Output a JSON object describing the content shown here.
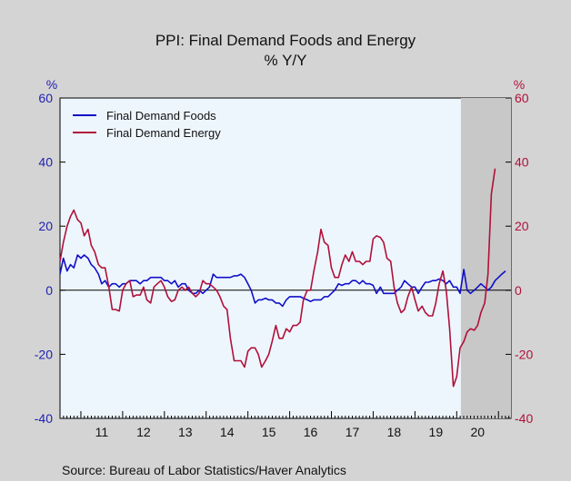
{
  "chart_data": {
    "type": "line",
    "title": "PPI: Final Demand Foods and Energy",
    "subtitle": "% Y/Y",
    "ylabel_left": "%",
    "ylabel_right": "%",
    "ylim": [
      -40,
      60
    ],
    "yticks": [
      -40,
      -20,
      0,
      20,
      40,
      60
    ],
    "x_range": [
      2010.5,
      2021.3
    ],
    "x_tick_labels": [
      {
        "label": "11",
        "year": 2011
      },
      {
        "label": "12",
        "year": 2012
      },
      {
        "label": "13",
        "year": 2013
      },
      {
        "label": "14",
        "year": 2014
      },
      {
        "label": "15",
        "year": 2015
      },
      {
        "label": "16",
        "year": 2016
      },
      {
        "label": "17",
        "year": 2017
      },
      {
        "label": "18",
        "year": 2018
      },
      {
        "label": "19",
        "year": 2019
      },
      {
        "label": "20",
        "year": 2020
      }
    ],
    "grid": false,
    "legend_position": "top-left",
    "recession_shading": {
      "start": 2020.1,
      "end": 2021.3
    },
    "colors": {
      "foods": "#1010c8",
      "energy": "#b0103a",
      "plot_bg": "#eef6fd",
      "shade": "#c8c8c8",
      "zero_line": "#000000"
    },
    "series": [
      {
        "name": "Final Demand Foods",
        "color": "#1010c8",
        "points": [
          [
            2010.5,
            5
          ],
          [
            2010.58,
            10
          ],
          [
            2010.67,
            6
          ],
          [
            2010.75,
            8
          ],
          [
            2010.83,
            7
          ],
          [
            2010.92,
            11
          ],
          [
            2011.0,
            10
          ],
          [
            2011.08,
            11
          ],
          [
            2011.17,
            10
          ],
          [
            2011.25,
            8
          ],
          [
            2011.33,
            7
          ],
          [
            2011.42,
            5
          ],
          [
            2011.5,
            2
          ],
          [
            2011.58,
            3
          ],
          [
            2011.67,
            1
          ],
          [
            2011.75,
            2
          ],
          [
            2011.83,
            2
          ],
          [
            2011.92,
            1
          ],
          [
            2012.0,
            2
          ],
          [
            2012.08,
            2
          ],
          [
            2012.17,
            3
          ],
          [
            2012.25,
            3
          ],
          [
            2012.33,
            3
          ],
          [
            2012.42,
            2
          ],
          [
            2012.5,
            3
          ],
          [
            2012.58,
            3
          ],
          [
            2012.67,
            4
          ],
          [
            2012.75,
            4
          ],
          [
            2012.83,
            4
          ],
          [
            2012.92,
            4
          ],
          [
            2013.0,
            3
          ],
          [
            2013.08,
            3
          ],
          [
            2013.17,
            2
          ],
          [
            2013.25,
            3
          ],
          [
            2013.33,
            1
          ],
          [
            2013.42,
            2
          ],
          [
            2013.5,
            2
          ],
          [
            2013.58,
            0
          ],
          [
            2013.67,
            -1
          ],
          [
            2013.75,
            -1
          ],
          [
            2013.83,
            0
          ],
          [
            2013.92,
            -1
          ],
          [
            2014.0,
            0
          ],
          [
            2014.08,
            1
          ],
          [
            2014.17,
            5
          ],
          [
            2014.25,
            4
          ],
          [
            2014.33,
            4
          ],
          [
            2014.42,
            4
          ],
          [
            2014.5,
            4
          ],
          [
            2014.58,
            4
          ],
          [
            2014.67,
            4.5
          ],
          [
            2014.75,
            4.5
          ],
          [
            2014.83,
            5
          ],
          [
            2014.92,
            4
          ],
          [
            2015.0,
            2
          ],
          [
            2015.08,
            0
          ],
          [
            2015.17,
            -4
          ],
          [
            2015.25,
            -3
          ],
          [
            2015.33,
            -3
          ],
          [
            2015.42,
            -2.5
          ],
          [
            2015.5,
            -3
          ],
          [
            2015.58,
            -3
          ],
          [
            2015.67,
            -4
          ],
          [
            2015.75,
            -4
          ],
          [
            2015.83,
            -5
          ],
          [
            2015.92,
            -3
          ],
          [
            2016.0,
            -2
          ],
          [
            2016.08,
            -2
          ],
          [
            2016.17,
            -2
          ],
          [
            2016.25,
            -2
          ],
          [
            2016.33,
            -2.5
          ],
          [
            2016.42,
            -3
          ],
          [
            2016.5,
            -3.5
          ],
          [
            2016.58,
            -3
          ],
          [
            2016.67,
            -3
          ],
          [
            2016.75,
            -3
          ],
          [
            2016.83,
            -2
          ],
          [
            2016.92,
            -2
          ],
          [
            2017.0,
            -1
          ],
          [
            2017.08,
            0
          ],
          [
            2017.17,
            2
          ],
          [
            2017.25,
            1.5
          ],
          [
            2017.33,
            2
          ],
          [
            2017.42,
            2
          ],
          [
            2017.5,
            3
          ],
          [
            2017.58,
            3
          ],
          [
            2017.67,
            2
          ],
          [
            2017.75,
            3
          ],
          [
            2017.83,
            2
          ],
          [
            2017.92,
            2
          ],
          [
            2018.0,
            1.5
          ],
          [
            2018.08,
            -1
          ],
          [
            2018.17,
            1
          ],
          [
            2018.25,
            -1
          ],
          [
            2018.33,
            -1
          ],
          [
            2018.42,
            -1
          ],
          [
            2018.5,
            -1
          ],
          [
            2018.58,
            0
          ],
          [
            2018.67,
            1
          ],
          [
            2018.75,
            3
          ],
          [
            2018.83,
            2
          ],
          [
            2018.92,
            1
          ],
          [
            2019.0,
            1
          ],
          [
            2019.08,
            -1
          ],
          [
            2019.17,
            1
          ],
          [
            2019.25,
            2.5
          ],
          [
            2019.33,
            2.5
          ],
          [
            2019.42,
            3
          ],
          [
            2019.5,
            3
          ],
          [
            2019.58,
            3.5
          ],
          [
            2019.67,
            3
          ],
          [
            2019.75,
            2
          ],
          [
            2019.83,
            3
          ],
          [
            2019.92,
            1
          ],
          [
            2020.0,
            1
          ],
          [
            2020.08,
            -1
          ],
          [
            2020.17,
            6.5
          ],
          [
            2020.25,
            0
          ],
          [
            2020.33,
            -1
          ],
          [
            2020.42,
            0
          ],
          [
            2020.5,
            1
          ],
          [
            2020.58,
            2
          ],
          [
            2020.67,
            1
          ],
          [
            2020.75,
            0
          ],
          [
            2020.83,
            1
          ],
          [
            2020.92,
            3
          ],
          [
            2021.0,
            4
          ],
          [
            2021.08,
            5
          ],
          [
            2021.17,
            6
          ]
        ]
      },
      {
        "name": "Final Demand Energy",
        "color": "#b0103a",
        "points": [
          [
            2010.5,
            9
          ],
          [
            2010.58,
            15
          ],
          [
            2010.67,
            20
          ],
          [
            2010.75,
            23
          ],
          [
            2010.83,
            25
          ],
          [
            2010.92,
            22
          ],
          [
            2011.0,
            21
          ],
          [
            2011.08,
            17
          ],
          [
            2011.17,
            19
          ],
          [
            2011.25,
            14
          ],
          [
            2011.33,
            12
          ],
          [
            2011.42,
            8
          ],
          [
            2011.5,
            7
          ],
          [
            2011.58,
            7
          ],
          [
            2011.67,
            1
          ],
          [
            2011.75,
            -6
          ],
          [
            2011.83,
            -6
          ],
          [
            2011.92,
            -6.5
          ],
          [
            2012.0,
            0
          ],
          [
            2012.08,
            2
          ],
          [
            2012.17,
            3
          ],
          [
            2012.25,
            -2
          ],
          [
            2012.33,
            -1.5
          ],
          [
            2012.42,
            -1.5
          ],
          [
            2012.5,
            1
          ],
          [
            2012.58,
            -3
          ],
          [
            2012.67,
            -4
          ],
          [
            2012.75,
            1
          ],
          [
            2012.83,
            2
          ],
          [
            2012.92,
            3
          ],
          [
            2013.0,
            1
          ],
          [
            2013.08,
            -2
          ],
          [
            2013.17,
            -3.5
          ],
          [
            2013.25,
            -3
          ],
          [
            2013.33,
            0
          ],
          [
            2013.42,
            1
          ],
          [
            2013.5,
            0
          ],
          [
            2013.58,
            1
          ],
          [
            2013.67,
            -1
          ],
          [
            2013.75,
            -2
          ],
          [
            2013.83,
            -1
          ],
          [
            2013.92,
            3
          ],
          [
            2014.0,
            2
          ],
          [
            2014.08,
            2
          ],
          [
            2014.17,
            1
          ],
          [
            2014.25,
            0
          ],
          [
            2014.33,
            -2
          ],
          [
            2014.42,
            -5
          ],
          [
            2014.5,
            -6
          ],
          [
            2014.58,
            -15
          ],
          [
            2014.67,
            -22
          ],
          [
            2014.75,
            -22
          ],
          [
            2014.83,
            -22
          ],
          [
            2014.92,
            -24
          ],
          [
            2015.0,
            -19
          ],
          [
            2015.08,
            -18
          ],
          [
            2015.17,
            -18
          ],
          [
            2015.25,
            -20
          ],
          [
            2015.33,
            -24
          ],
          [
            2015.42,
            -22
          ],
          [
            2015.5,
            -20
          ],
          [
            2015.58,
            -16
          ],
          [
            2015.67,
            -11
          ],
          [
            2015.75,
            -15
          ],
          [
            2015.83,
            -15
          ],
          [
            2015.92,
            -12
          ],
          [
            2016.0,
            -13
          ],
          [
            2016.08,
            -11
          ],
          [
            2016.17,
            -11
          ],
          [
            2016.25,
            -10
          ],
          [
            2016.33,
            -3
          ],
          [
            2016.42,
            0
          ],
          [
            2016.5,
            0
          ],
          [
            2016.58,
            6
          ],
          [
            2016.67,
            12
          ],
          [
            2016.75,
            19
          ],
          [
            2016.83,
            15
          ],
          [
            2016.92,
            14
          ],
          [
            2017.0,
            7
          ],
          [
            2017.08,
            4
          ],
          [
            2017.17,
            4
          ],
          [
            2017.25,
            8
          ],
          [
            2017.33,
            11
          ],
          [
            2017.42,
            9
          ],
          [
            2017.5,
            12
          ],
          [
            2017.58,
            9
          ],
          [
            2017.67,
            9
          ],
          [
            2017.75,
            8
          ],
          [
            2017.83,
            9
          ],
          [
            2017.92,
            9
          ],
          [
            2018.0,
            16
          ],
          [
            2018.08,
            17
          ],
          [
            2018.17,
            16.5
          ],
          [
            2018.25,
            15
          ],
          [
            2018.33,
            10
          ],
          [
            2018.42,
            9
          ],
          [
            2018.5,
            1
          ],
          [
            2018.58,
            -4
          ],
          [
            2018.67,
            -7
          ],
          [
            2018.75,
            -6
          ],
          [
            2018.83,
            -2
          ],
          [
            2018.92,
            1
          ],
          [
            2019.0,
            -3
          ],
          [
            2019.08,
            -6.5
          ],
          [
            2019.17,
            -5
          ],
          [
            2019.25,
            -7
          ],
          [
            2019.33,
            -8
          ],
          [
            2019.42,
            -8
          ],
          [
            2019.5,
            -4
          ],
          [
            2019.58,
            2
          ],
          [
            2019.67,
            6
          ],
          [
            2019.75,
            0
          ],
          [
            2019.83,
            -12
          ],
          [
            2019.92,
            -30
          ],
          [
            2020.0,
            -27
          ],
          [
            2020.08,
            -18
          ],
          [
            2020.17,
            -16
          ],
          [
            2020.25,
            -13
          ],
          [
            2020.33,
            -12
          ],
          [
            2020.42,
            -12.5
          ],
          [
            2020.5,
            -11
          ],
          [
            2020.58,
            -7
          ],
          [
            2020.67,
            -4
          ],
          [
            2020.75,
            5
          ],
          [
            2020.83,
            30
          ],
          [
            2020.92,
            38
          ]
        ]
      }
    ]
  },
  "source_text": "Source:  Bureau of Labor Statistics/Haver Analytics"
}
